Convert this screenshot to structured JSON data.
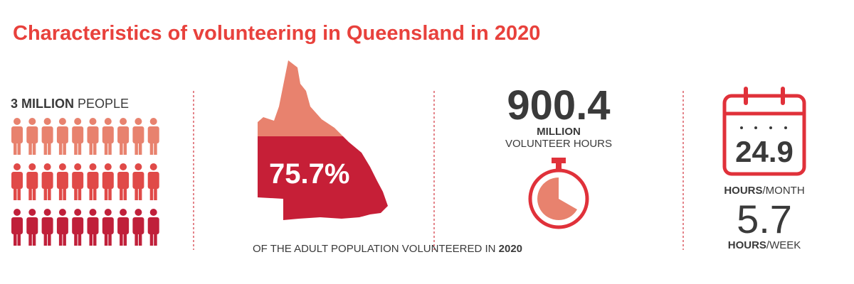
{
  "title": "Characteristics of volunteering in Queensland in 2020",
  "people": {
    "amount": "3 MILLION",
    "unit": "PEOPLE"
  },
  "population": {
    "percent": "75.7%",
    "caption": "OF THE ADULT POPULATION VOLUNTEERED IN",
    "year": "2020"
  },
  "hours": {
    "total": "900.4",
    "scale": "MILLION",
    "unit": "VOLUNTEER HOURS"
  },
  "frequency": {
    "monthly": "24.9",
    "monthly_unit_bold": "HOURS",
    "monthly_unit": "/MONTH",
    "weekly": "5.7",
    "weekly_unit_bold": "HOURS",
    "weekly_unit": "/WEEK"
  }
}
